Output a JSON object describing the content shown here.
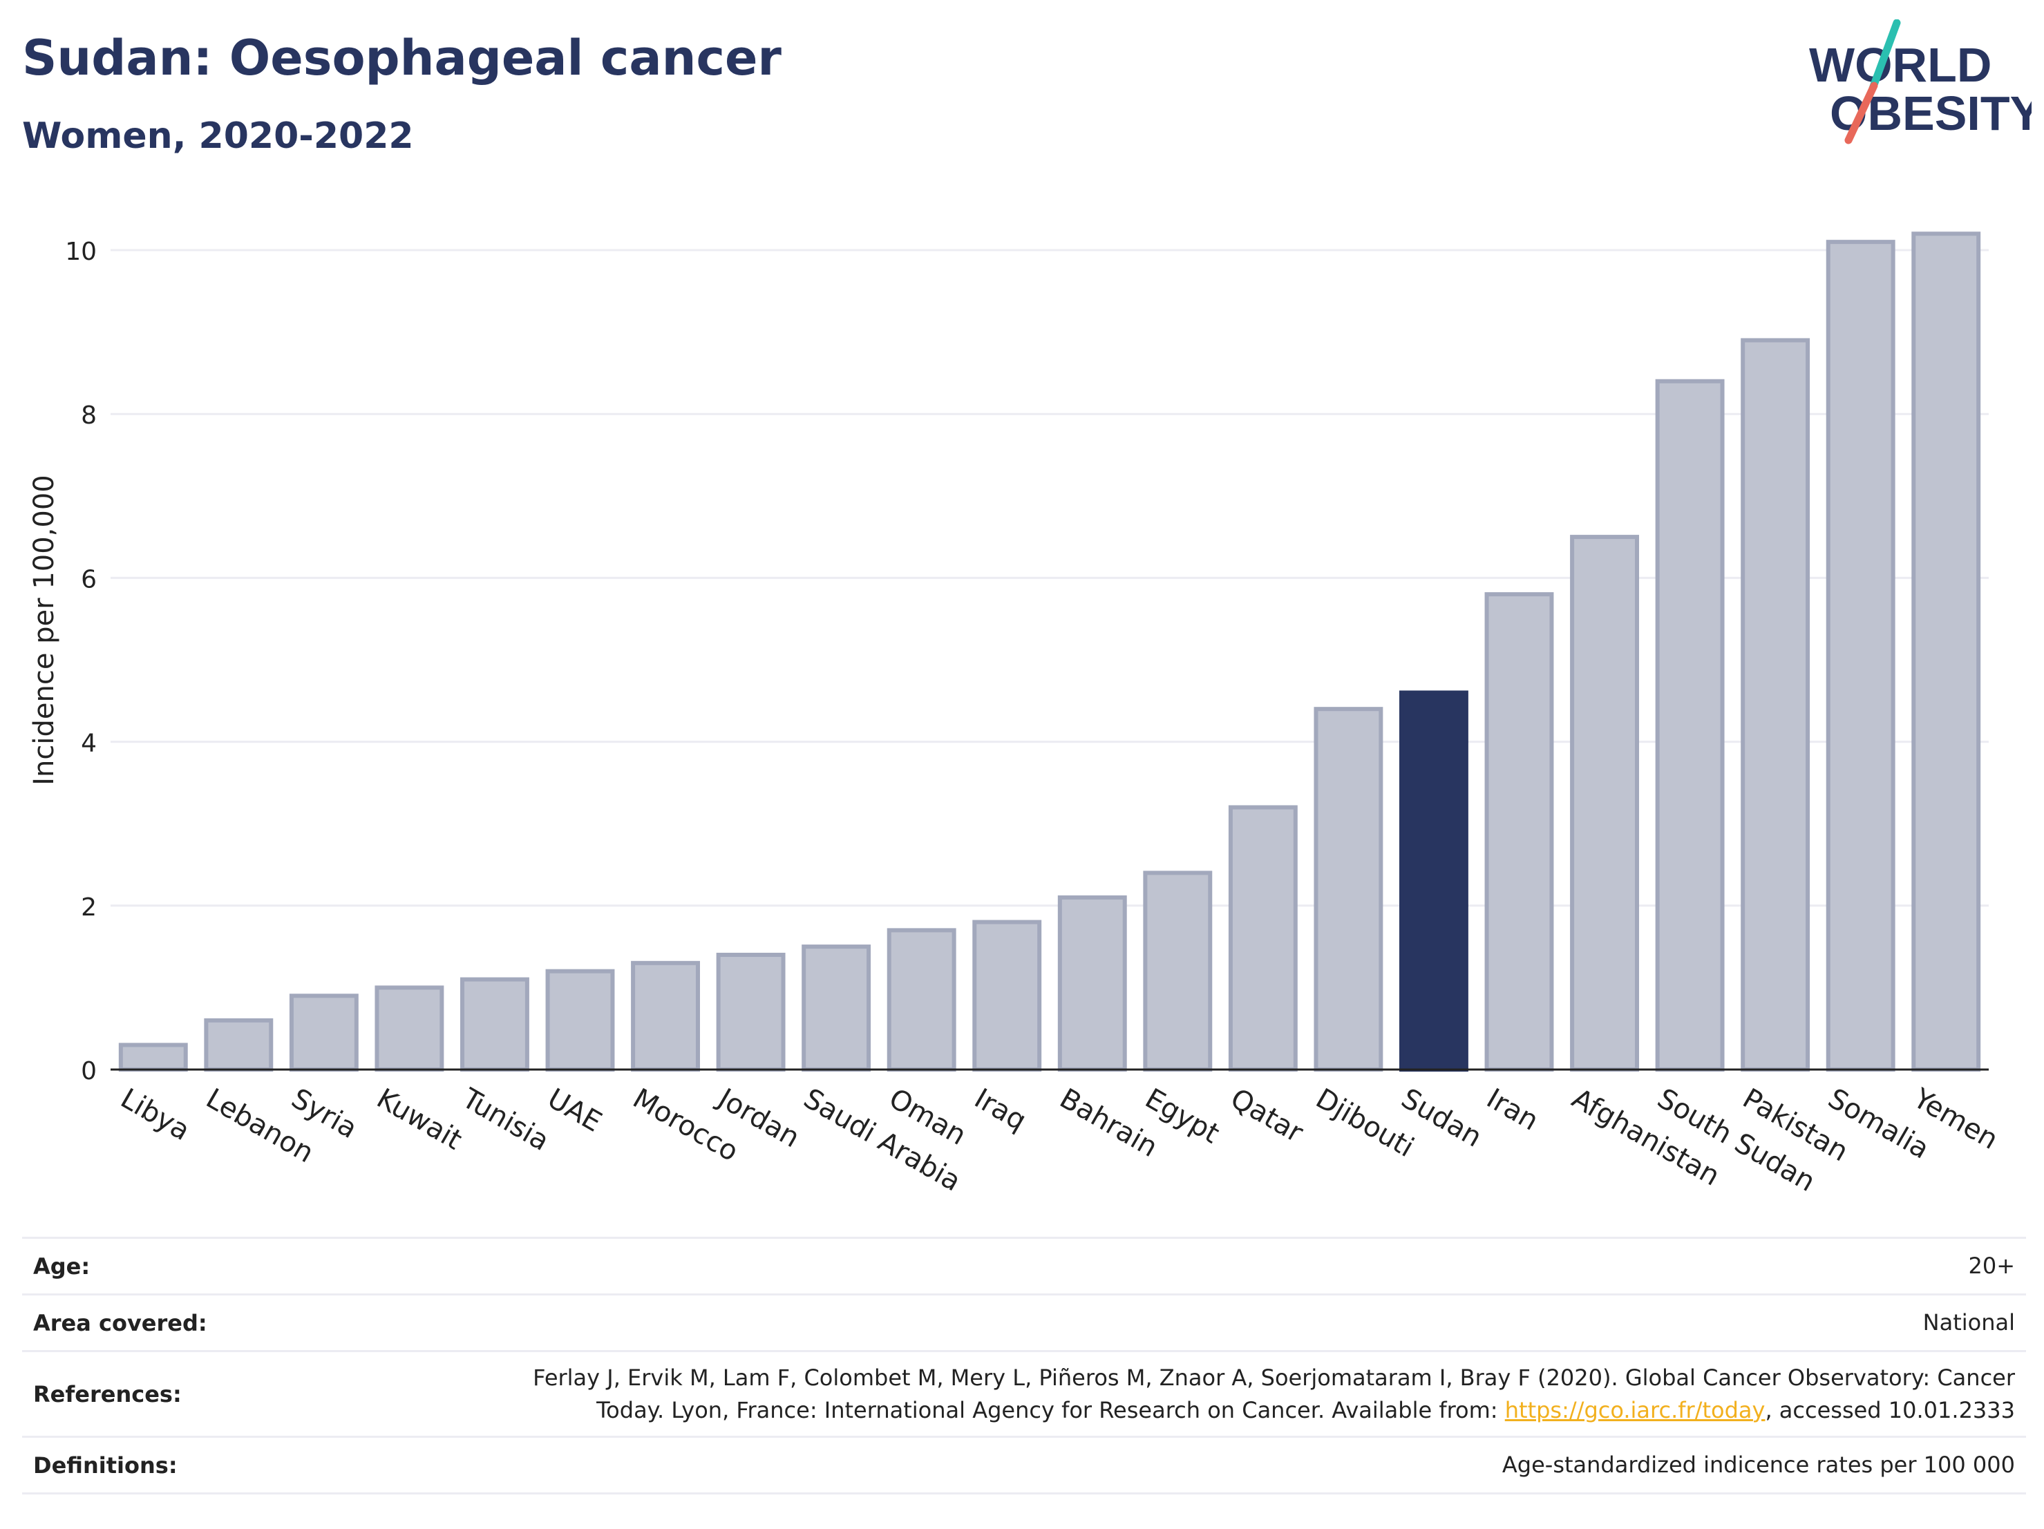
{
  "title": "Sudan: Oesophageal cancer",
  "subtitle": "Women, 2020-2022",
  "logo": {
    "line1": "WORLD",
    "line2": "OBESITY",
    "slash_colors": [
      "#2bbfb0",
      "#e8685a"
    ]
  },
  "colors": {
    "bar": "#bfc3d0",
    "bar_border": "#a2a8bc",
    "highlight": "#283560",
    "grid": "#ececf2",
    "axis": "#222222",
    "link": "#f2b01e"
  },
  "chart_data": {
    "type": "bar",
    "ylabel": "Incidence per 100,000",
    "ylim": [
      0,
      10.5
    ],
    "yticks": [
      0,
      2,
      4,
      6,
      8,
      10
    ],
    "grid": true,
    "highlight": "Sudan",
    "categories": [
      "Libya",
      "Lebanon",
      "Syria",
      "Kuwait",
      "Tunisia",
      "UAE",
      "Morocco",
      "Jordan",
      "Saudi Arabia",
      "Oman",
      "Iraq",
      "Bahrain",
      "Egypt",
      "Qatar",
      "Djibouti",
      "Sudan",
      "Iran",
      "Afghanistan",
      "South Sudan",
      "Pakistan",
      "Somalia",
      "Yemen"
    ],
    "values": [
      0.3,
      0.6,
      0.9,
      1.0,
      1.1,
      1.2,
      1.3,
      1.4,
      1.5,
      1.7,
      1.8,
      2.1,
      2.4,
      3.2,
      4.4,
      4.6,
      5.8,
      6.5,
      8.4,
      8.9,
      10.1,
      10.2
    ]
  },
  "meta": {
    "age_label": "Age:",
    "age_value": "20+",
    "area_label": "Area covered:",
    "area_value": "National",
    "ref_label": "References:",
    "ref_line1": "Ferlay J, Ervik M, Lam F, Colombet M, Mery L, Piñeros M, Znaor A, Soerjomataram I, Bray F (2020). Global Cancer Observatory: Cancer",
    "ref_line2a": "Today. Lyon, France: International Agency for Research on Cancer. Available from: ",
    "ref_link": "https://gco.iarc.fr/today",
    "ref_line2b": ", accessed 10.01.2333",
    "def_label": "Definitions:",
    "def_value": "Age-standardized indicence rates per 100 000"
  }
}
